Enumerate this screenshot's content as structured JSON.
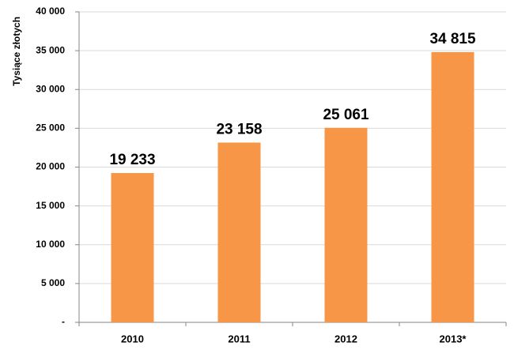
{
  "chart_data": {
    "type": "bar",
    "y_label": "Tysiące złotych",
    "categories": [
      "2010",
      "2011",
      "2012",
      "2013*"
    ],
    "values": [
      19233,
      23158,
      25061,
      34815
    ],
    "value_labels": [
      "19 233",
      "23 158",
      "25 061",
      "34 815"
    ],
    "color": "#f79646",
    "ylim": [
      0,
      40000
    ],
    "yticks": [
      {
        "value": 0,
        "label": "-"
      },
      {
        "value": 5000,
        "label": "5 000"
      },
      {
        "value": 10000,
        "label": "10 000"
      },
      {
        "value": 15000,
        "label": "15 000"
      },
      {
        "value": 20000,
        "label": "20 000"
      },
      {
        "value": 25000,
        "label": "25 000"
      },
      {
        "value": 30000,
        "label": "30 000"
      },
      {
        "value": 35000,
        "label": "35 000"
      },
      {
        "value": 40000,
        "label": "40 000"
      }
    ],
    "grid": true
  }
}
